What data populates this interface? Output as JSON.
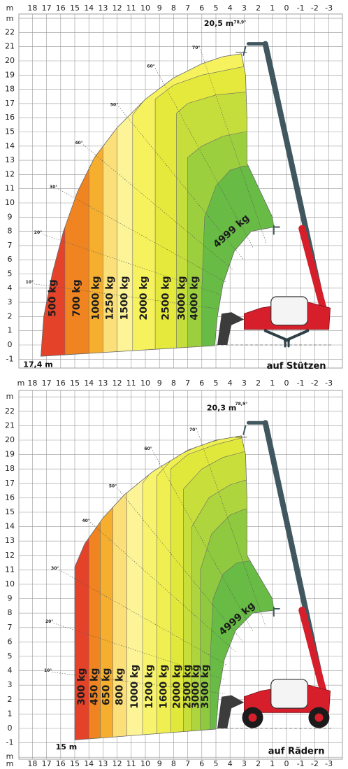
{
  "x_axis_rows": [
    [
      "m",
      "18",
      "17",
      "16",
      "15",
      "14",
      "13",
      "12",
      "11",
      "10",
      "9",
      "8",
      "7",
      "6",
      "5",
      "4",
      "3",
      "2",
      "1",
      "0",
      "-1",
      "-2",
      "-3"
    ],
    [
      "m",
      "18",
      "17",
      "16",
      "15",
      "14",
      "13",
      "12",
      "11",
      "10",
      "9",
      "8",
      "7",
      "6",
      "5",
      "4",
      "3",
      "2",
      "1",
      "0",
      "-1",
      "-2",
      "-3"
    ],
    [
      "m",
      "18",
      "17",
      "16",
      "15",
      "14",
      "13",
      "12",
      "11",
      "10",
      "9",
      "8",
      "7",
      "6",
      "5",
      "4",
      "3",
      "2",
      "1",
      "0",
      "-1",
      "-2",
      "-3"
    ]
  ],
  "panels": [
    {
      "title": "auf Stützen",
      "max_height": "20,5 m",
      "max_angle": "78,9°",
      "max_reach": "17,4 m",
      "y_axis": [
        "m",
        "22",
        "21",
        "20",
        "19",
        "18",
        "17",
        "16",
        "15",
        "14",
        "13",
        "12",
        "11",
        "10",
        "9",
        "8",
        "7",
        "6",
        "5",
        "4",
        "3",
        "2",
        "1",
        "0",
        "-1"
      ],
      "angles": [
        "10°",
        "20°",
        "30°",
        "40°",
        "50°",
        "60°",
        "70°"
      ],
      "zones": [
        "500 kg",
        "700 kg",
        "1000 kg",
        "1250 kg",
        "1500 kg",
        "2000 kg",
        "2500 kg",
        "3000 kg",
        "4000 kg",
        "4999 kg"
      ]
    },
    {
      "title": "auf Rädern",
      "max_height": "20,3 m",
      "max_angle": "78,9°",
      "max_reach": "15 m",
      "y_axis": [
        "m",
        "22",
        "21",
        "20",
        "19",
        "18",
        "17",
        "16",
        "15",
        "14",
        "13",
        "12",
        "11",
        "10",
        "9",
        "8",
        "7",
        "6",
        "5",
        "4",
        "3",
        "2",
        "1",
        "0",
        "-1",
        "m"
      ],
      "angles": [
        "10°",
        "20°",
        "30°",
        "40°",
        "50°",
        "60°",
        "70°"
      ],
      "zones": [
        "300 kg",
        "450 kg",
        "650 kg",
        "800 kg",
        "1000 kg",
        "1200 kg",
        "1600 kg",
        "2000 kg",
        "2500 kg",
        "3000 kg",
        "3500 kg",
        "4999 kg"
      ]
    }
  ]
}
